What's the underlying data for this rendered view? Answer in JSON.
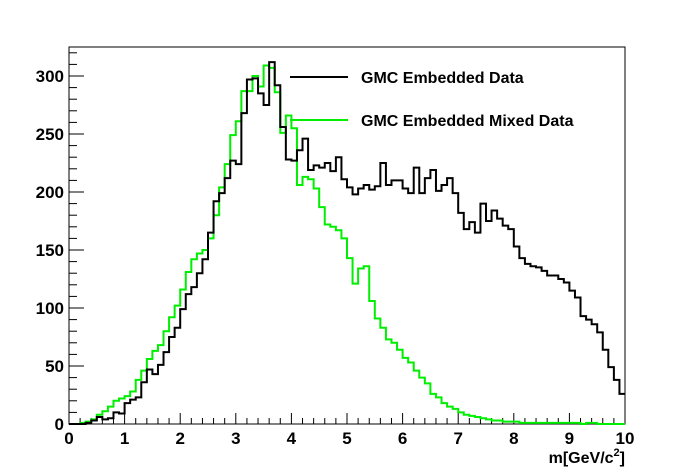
{
  "chart_data": {
    "type": "line",
    "step": true,
    "xlabel": "m[GeV/c",
    "xlabel_sup": "2",
    "xlabel_close": "]",
    "ylabel": "",
    "xlim": [
      0,
      10
    ],
    "ylim": [
      0,
      325
    ],
    "xticks": [
      0,
      1,
      2,
      3,
      4,
      5,
      6,
      7,
      8,
      9,
      10
    ],
    "yticks": [
      0,
      50,
      100,
      150,
      200,
      250,
      300
    ],
    "bin_width": 0.1,
    "grid": false,
    "legend_position": "top-right",
    "series": [
      {
        "name": "GMC Embedded Data",
        "color": "#000000",
        "values": [
          0,
          0,
          0,
          1,
          3,
          6,
          4,
          5,
          10,
          9,
          18,
          21,
          23,
          36,
          47,
          43,
          51,
          62,
          75,
          83,
          99,
          112,
          118,
          130,
          142,
          165,
          192,
          199,
          212,
          227,
          224,
          268,
          297,
          298,
          285,
          275,
          312,
          292,
          256,
          228,
          227,
          236,
          246,
          219,
          223,
          221,
          225,
          218,
          230,
          211,
          204,
          198,
          203,
          206,
          202,
          205,
          225,
          206,
          210,
          210,
          203,
          199,
          221,
          199,
          212,
          219,
          201,
          206,
          212,
          199,
          182,
          168,
          174,
          165,
          190,
          175,
          184,
          177,
          171,
          168,
          153,
          143,
          138,
          136,
          135,
          132,
          128,
          128,
          125,
          122,
          115,
          109,
          93,
          90,
          86,
          79,
          64,
          49,
          38,
          26,
          14
        ],
        "start": 0.0
      },
      {
        "name": "GMC Embedded Mixed Data",
        "color": "#00ee00",
        "values": [
          0,
          0,
          1,
          2,
          4,
          8,
          11,
          15,
          20,
          22,
          24,
          28,
          38,
          46,
          56,
          63,
          68,
          80,
          92,
          102,
          116,
          131,
          142,
          147,
          150,
          160,
          180,
          204,
          224,
          249,
          261,
          287,
          287,
          300,
          291,
          309,
          307,
          286,
          251,
          266,
          255,
          206,
          213,
          211,
          203,
          187,
          172,
          170,
          167,
          160,
          143,
          121,
          134,
          136,
          106,
          91,
          83,
          73,
          70,
          64,
          57,
          53,
          46,
          40,
          35,
          26,
          23,
          18,
          15,
          13,
          10,
          8,
          7,
          6,
          5,
          4,
          3,
          3,
          2,
          2,
          2,
          1,
          1,
          1,
          1,
          1,
          1,
          1,
          1,
          1,
          1,
          1,
          0,
          1,
          1,
          0,
          0,
          0,
          0,
          0,
          0
        ],
        "start": 0.0
      }
    ]
  }
}
